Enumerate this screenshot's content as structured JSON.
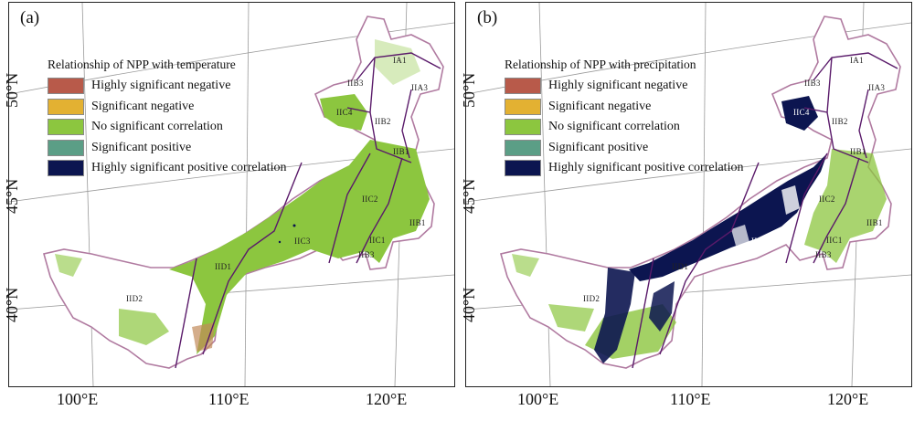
{
  "panels": [
    {
      "label": "(a)",
      "legend_title": "Relationship of NPP with temperature",
      "legend": [
        {
          "label": "Highly significant negative",
          "color": "#b85a4a"
        },
        {
          "label": "Significant negative",
          "color": "#e3b132"
        },
        {
          "label": "No significant  correlation",
          "color": "#8cc63f"
        },
        {
          "label": "Significant positive",
          "color": "#5b9e86"
        },
        {
          "label": "Highly significant positive correlation",
          "color": "#0c1550"
        }
      ],
      "zones": [
        "IA1",
        "IIB3",
        "IIA3",
        "IIC4",
        "IIB2",
        "IIB1",
        "IIC2",
        "IIB1",
        "IIC3",
        "IIC1",
        "IIB3",
        "IID1",
        "IID2"
      ]
    },
    {
      "label": "(b)",
      "legend_title": "Relationship of NPP with precipitation",
      "legend": [
        {
          "label": "Highly significant negative",
          "color": "#b85a4a"
        },
        {
          "label": "Significant negative",
          "color": "#e3b132"
        },
        {
          "label": "No significant  correlation",
          "color": "#8cc63f"
        },
        {
          "label": "Significant positive",
          "color": "#5b9e86"
        },
        {
          "label": "Highly significant positive correlation",
          "color": "#0c1550"
        }
      ],
      "zones": [
        "IA1",
        "IIB3",
        "IIA3",
        "IIC4",
        "IIB2",
        "IIB1",
        "IIC2",
        "IIB1",
        "IIC3",
        "IIC1",
        "IIB3",
        "IID1",
        "IID2"
      ]
    }
  ],
  "lat_labels": [
    "50°N",
    "45°N",
    "40°N"
  ],
  "lon_labels": [
    "100°E",
    "110°E",
    "120°E"
  ]
}
